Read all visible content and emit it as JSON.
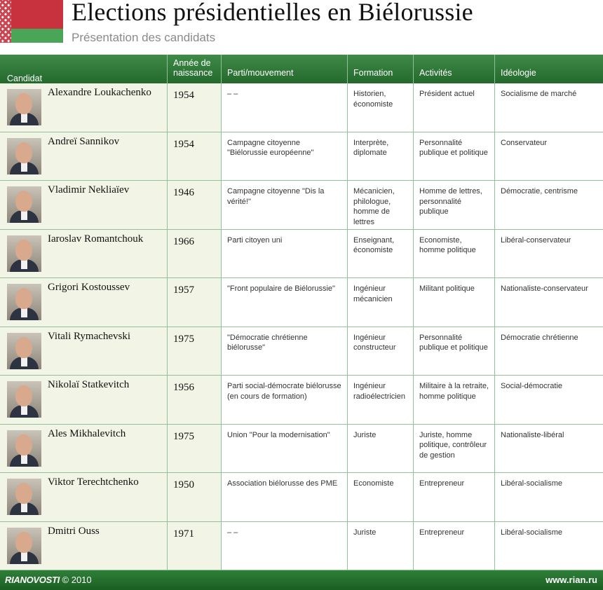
{
  "header": {
    "title": "Elections présidentielles en Biélorussie",
    "subtitle": "Présentation des candidats"
  },
  "table": {
    "columns": [
      "Candidat",
      "Année de naissance",
      "Parti/mouvement",
      "Formation",
      "Activités",
      "Idéologie"
    ],
    "rows": [
      {
        "name": "Alexandre Loukachenko",
        "year": "1954",
        "party": "– –",
        "formation": "Historien, économiste",
        "activity": "Président actuel",
        "ideology": "Socialisme de marché"
      },
      {
        "name": "Andreï Sannikov",
        "year": "1954",
        "party": "Campagne citoyenne \"Biélorussie européenne\"",
        "formation": "Interprète, diplomate",
        "activity": "Personnalité publique et politique",
        "ideology": "Conservateur"
      },
      {
        "name": "Vladimir Nekliaïev",
        "year": "1946",
        "party": "Campagne citoyenne \"Dis la vérité!\"",
        "formation": "Mécanicien, philologue, homme de lettres",
        "activity": "Homme de lettres, personnalité publique",
        "ideology": "Démocratie, centrisme"
      },
      {
        "name": "Iaroslav Romantchouk",
        "year": "1966",
        "party": "Parti citoyen uni",
        "formation": "Enseignant, économiste",
        "activity": "Economiste, homme politique",
        "ideology": "Libéral-conservateur"
      },
      {
        "name": "Grigori Kostoussev",
        "year": "1957",
        "party": "\"Front populaire de Biélorussie\"",
        "formation": "Ingénieur mécanicien",
        "activity": "Militant politique",
        "ideology": "Nationaliste-conservateur"
      },
      {
        "name": "Vitali Rymachevski",
        "year": "1975",
        "party": "\"Démocratie chrétienne biélorusse\"",
        "formation": "Ingénieur constructeur",
        "activity": "Personnalité publique et politique",
        "ideology": "Démocratie chrétienne"
      },
      {
        "name": "Nikolaï Statkevitch",
        "year": "1956",
        "party": "Parti social-démocrate biélorusse (en cours de formation)",
        "formation": "Ingénieur radioélectricien",
        "activity": "Militaire à la retraite, homme politique",
        "ideology": "Social-démocratie"
      },
      {
        "name": "Ales Mikhalevitch",
        "year": "1975",
        "party": "Union \"Pour la modernisation\"",
        "formation": "Juriste",
        "activity": "Juriste, homme politique, contrôleur de gestion",
        "ideology": "Nationaliste-libéral"
      },
      {
        "name": "Viktor Terechtchenko",
        "year": "1950",
        "party": "Association biélorusse des PME",
        "formation": "Economiste",
        "activity": "Entrepreneur",
        "ideology": "Libéral-socialisme"
      },
      {
        "name": "Dmitri Ouss",
        "year": "1971",
        "party": "– –",
        "formation": "Juriste",
        "activity": "Entrepreneur",
        "ideology": "Libéral-socialisme"
      }
    ]
  },
  "footer": {
    "brand": "RIANOVOSTI",
    "copyright": "© 2010",
    "site": "www.rian.ru"
  },
  "colors": {
    "header_green": "#2f7f38",
    "flag_red": "#c8313e",
    "flag_green": "#4aa657",
    "name_column_bg": "#f2f5e5"
  }
}
